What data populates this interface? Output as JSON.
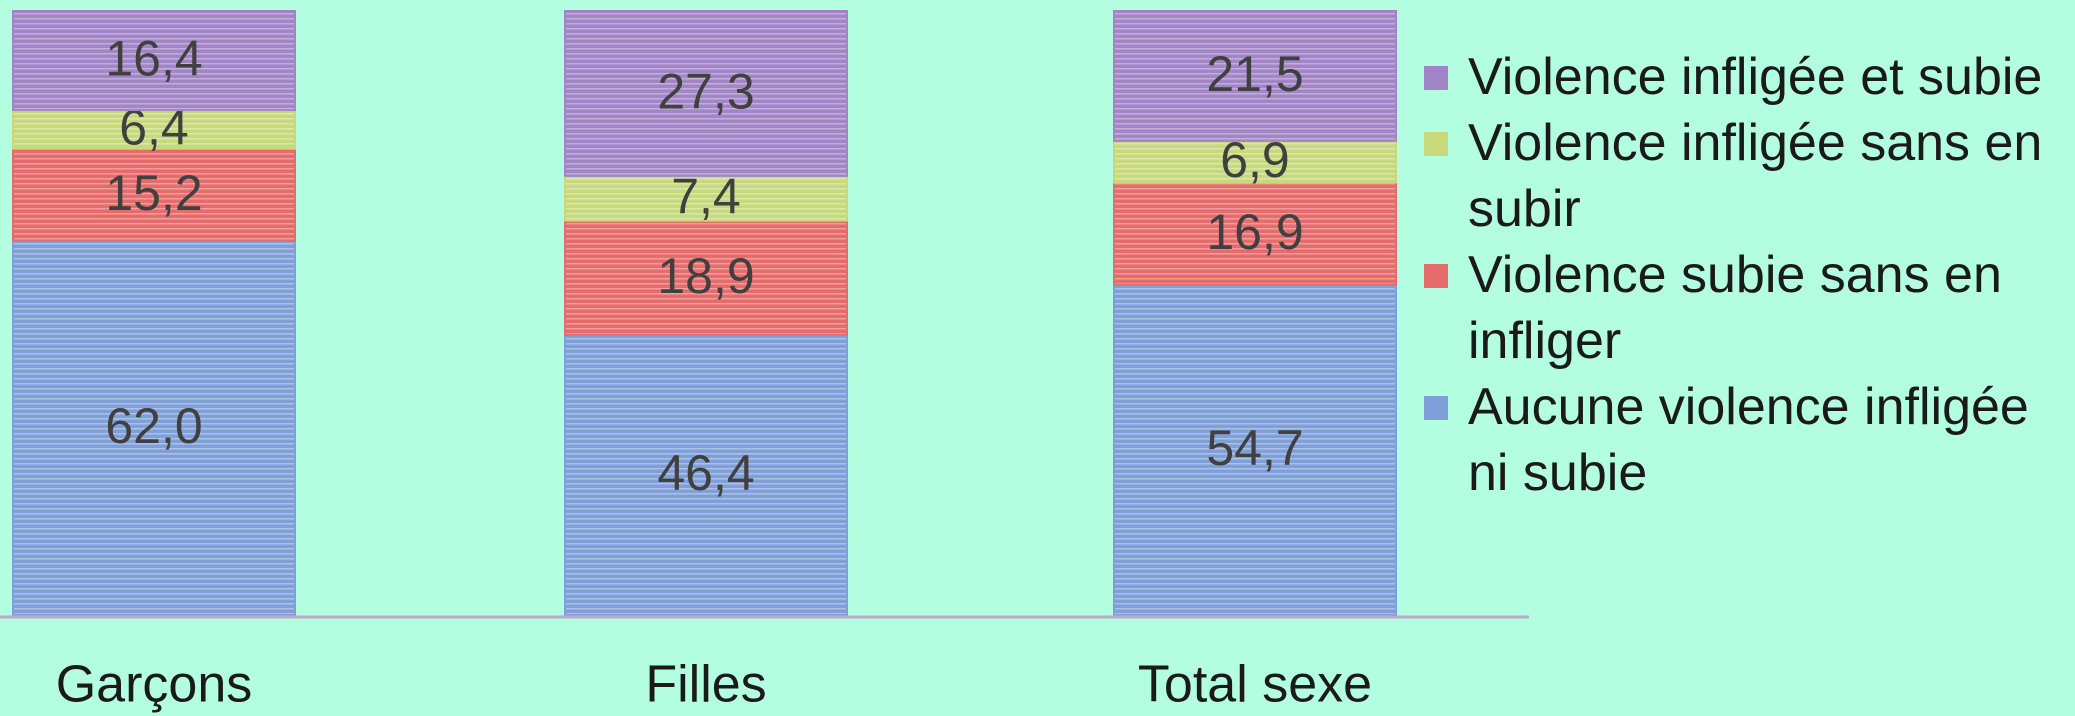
{
  "chart_data": {
    "type": "bar",
    "stacked": true,
    "categories": [
      "Garçons",
      "Filles",
      "Total sexe"
    ],
    "ylim": [
      0,
      100
    ],
    "series": [
      {
        "name": "Aucune violence infligée ni subie",
        "color": "#7f9fd8",
        "values": [
          62.0,
          46.4,
          54.7
        ],
        "value_labels": [
          "62,0",
          "46,4",
          "54,7"
        ]
      },
      {
        "name": "Violence subie sans en infliger",
        "color": "#e66b6b",
        "values": [
          15.2,
          18.9,
          16.9
        ],
        "value_labels": [
          "15,2",
          "18,9",
          "16,9"
        ]
      },
      {
        "name": "Violence infligée sans en subir",
        "color": "#c8d97c",
        "values": [
          6.4,
          7.4,
          6.9
        ],
        "value_labels": [
          "6,4",
          "7,4",
          "6,9"
        ]
      },
      {
        "name": "Violence infligée et subie",
        "color": "#a285c6",
        "values": [
          16.4,
          27.3,
          21.5
        ],
        "value_labels": [
          "16,4",
          "27,3",
          "21,5"
        ]
      }
    ]
  }
}
